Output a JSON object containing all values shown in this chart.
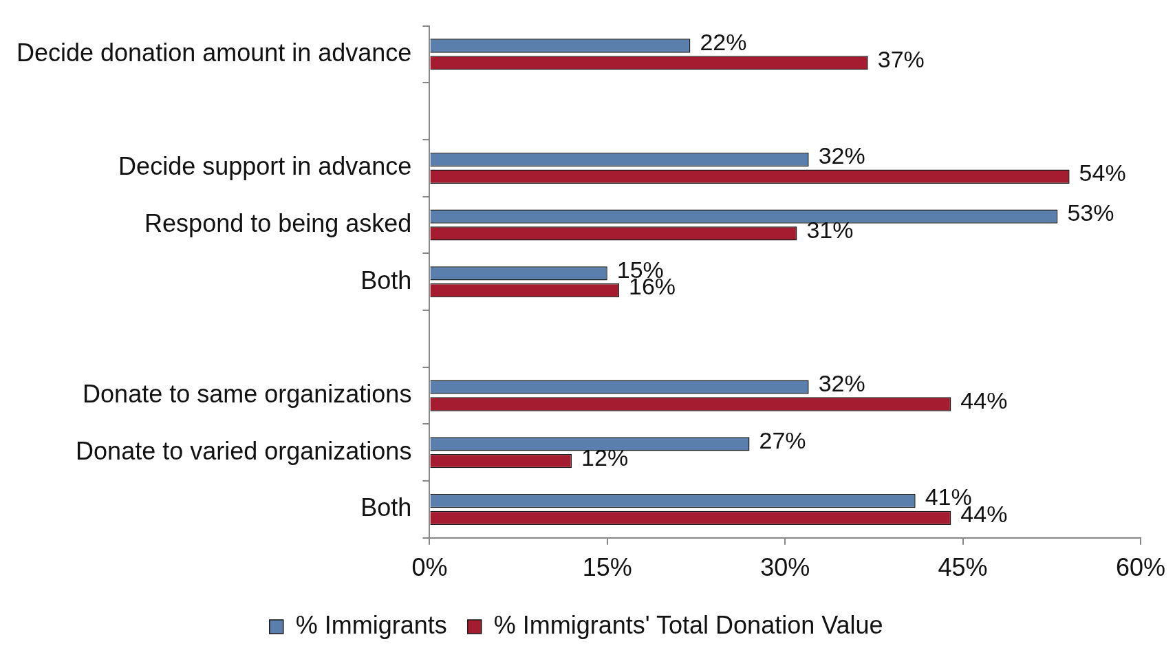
{
  "chart_data": {
    "type": "bar",
    "orientation": "horizontal",
    "categories": [
      "Decide donation amount in advance",
      null,
      "Decide support in advance",
      "Respond to being asked",
      "Both",
      null,
      "Donate to same organizations",
      "Donate to varied organizations",
      "Both"
    ],
    "series": [
      {
        "name": "% Immigrants",
        "color": "#5b7fad",
        "values": [
          22,
          null,
          32,
          53,
          15,
          null,
          32,
          27,
          41
        ],
        "value_labels": [
          "22%",
          null,
          "32%",
          "53%",
          "15%",
          null,
          "32%",
          "27%",
          "41%"
        ]
      },
      {
        "name": "% Immigrants' Total Donation Value",
        "color": "#a51c30",
        "values": [
          37,
          null,
          54,
          31,
          16,
          null,
          44,
          12,
          44
        ],
        "value_labels": [
          "37%",
          null,
          "54%",
          "31%",
          "16%",
          null,
          "44%",
          "12%",
          "44%"
        ]
      }
    ],
    "xlim": [
      0,
      60
    ],
    "xticks": [
      {
        "value": 0,
        "label": "0%"
      },
      {
        "value": 15,
        "label": "15%"
      },
      {
        "value": 30,
        "label": "30%"
      },
      {
        "value": 45,
        "label": "45%"
      },
      {
        "value": 60,
        "label": "60%"
      }
    ],
    "legend": "bottom"
  }
}
